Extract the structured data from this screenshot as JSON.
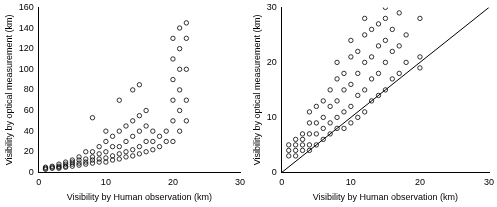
{
  "chart_data": [
    {
      "type": "scatter",
      "x_label": "Visibility by Human observation (km)",
      "y_label": "Visibility by optical measurement (km)",
      "xlim": [
        0,
        30
      ],
      "xticks": [
        0,
        10,
        20,
        30
      ],
      "ylim": [
        0,
        160
      ],
      "yticks": [
        0,
        20,
        40,
        60,
        80,
        100,
        120,
        140,
        160
      ],
      "grid": false,
      "series": [
        {
          "type": "scatter",
          "color": "#000000",
          "marker": "circle",
          "x": [
            1,
            1,
            1,
            2,
            2,
            2,
            3,
            3,
            3,
            3,
            4,
            4,
            4,
            4,
            5,
            5,
            5,
            5,
            6,
            6,
            6,
            6,
            7,
            7,
            7,
            7,
            8,
            8,
            8,
            8,
            8,
            9,
            9,
            9,
            9,
            10,
            10,
            10,
            10,
            10,
            11,
            11,
            11,
            11,
            12,
            12,
            12,
            12,
            12,
            13,
            13,
            13,
            13,
            14,
            14,
            14,
            14,
            14,
            15,
            15,
            15,
            15,
            15,
            16,
            16,
            16,
            16,
            17,
            17,
            17,
            18,
            18,
            19,
            19,
            20,
            20,
            20,
            20,
            20,
            20,
            21,
            21,
            21,
            21,
            21,
            21,
            22,
            22,
            22,
            22,
            22
          ],
          "values": [
            3,
            4,
            5,
            4,
            5,
            6,
            4,
            5,
            6,
            8,
            5,
            6,
            8,
            10,
            6,
            8,
            10,
            12,
            7,
            9,
            12,
            15,
            8,
            10,
            13,
            20,
            9,
            12,
            15,
            20,
            53,
            10,
            13,
            18,
            25,
            10,
            14,
            20,
            30,
            40,
            12,
            16,
            25,
            35,
            13,
            18,
            25,
            40,
            70,
            15,
            20,
            30,
            45,
            16,
            22,
            35,
            50,
            80,
            18,
            25,
            40,
            55,
            85,
            20,
            30,
            45,
            60,
            22,
            30,
            40,
            25,
            35,
            30,
            40,
            30,
            50,
            70,
            90,
            110,
            130,
            40,
            60,
            80,
            100,
            120,
            140,
            50,
            70,
            100,
            130,
            145
          ]
        }
      ]
    },
    {
      "type": "scatter",
      "x_label": "Visibility by Human observation (km)",
      "y_label": "Visibility by optical measurement (km)",
      "xlim": [
        0,
        30
      ],
      "xticks": [
        0,
        10,
        20,
        30
      ],
      "ylim": [
        0,
        30
      ],
      "yticks": [
        0,
        10,
        20,
        30
      ],
      "grid": false,
      "series": [
        {
          "type": "scatter",
          "color": "#000000",
          "marker": "circle",
          "x": [
            1,
            1,
            1,
            2,
            2,
            2,
            2,
            3,
            3,
            3,
            3,
            4,
            4,
            4,
            4,
            4,
            5,
            5,
            5,
            5,
            6,
            6,
            6,
            6,
            7,
            7,
            7,
            7,
            8,
            8,
            8,
            8,
            8,
            9,
            9,
            9,
            9,
            10,
            10,
            10,
            10,
            10,
            11,
            11,
            11,
            11,
            12,
            12,
            12,
            12,
            12,
            13,
            13,
            13,
            13,
            14,
            14,
            14,
            14,
            15,
            15,
            15,
            15,
            15,
            16,
            16,
            16,
            17,
            17,
            17,
            18,
            18,
            20,
            20,
            20
          ],
          "values": [
            3,
            4,
            5,
            3,
            4,
            5,
            6,
            4,
            5,
            6,
            7,
            4,
            5,
            7,
            9,
            11,
            5,
            7,
            9,
            12,
            6,
            8,
            10,
            13,
            7,
            9,
            12,
            15,
            8,
            10,
            13,
            17,
            20,
            8,
            11,
            15,
            18,
            9,
            12,
            16,
            21,
            24,
            10,
            14,
            18,
            22,
            11,
            15,
            20,
            25,
            28,
            13,
            17,
            21,
            26,
            14,
            18,
            23,
            27,
            15,
            20,
            24,
            28,
            30,
            17,
            22,
            26,
            18,
            23,
            29,
            20,
            25,
            19,
            21,
            28
          ]
        },
        {
          "type": "line",
          "color": "#000000",
          "line_style": "solid",
          "x": [
            0,
            30
          ],
          "values": [
            0,
            30
          ]
        }
      ]
    }
  ]
}
